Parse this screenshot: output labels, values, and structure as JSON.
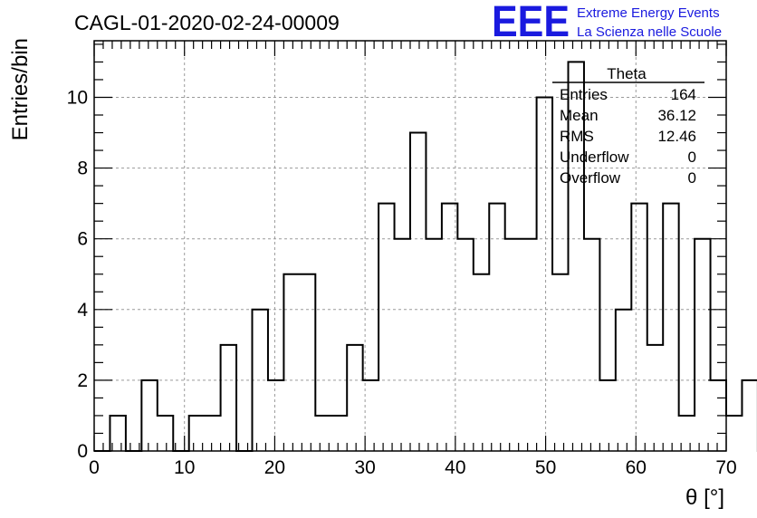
{
  "header": {
    "title": "CAGL-01-2020-02-24-00009",
    "logo_mark": "EEE",
    "logo_line1": "Extreme Energy Events",
    "logo_line2": "La Scienza nelle Scuole",
    "logo_color": "#1a1adf"
  },
  "stats_box": {
    "name": "Theta",
    "rows": [
      {
        "label": "Entries",
        "value": "164"
      },
      {
        "label": "Mean",
        "value": "36.12"
      },
      {
        "label": "RMS",
        "value": "12.46"
      },
      {
        "label": "Underflow",
        "value": "0"
      },
      {
        "label": "Overflow",
        "value": "0"
      }
    ]
  },
  "chart_data": {
    "type": "histogram",
    "xlabel": "θ [°]",
    "ylabel": "Entries/bin",
    "xlim": [
      0,
      70
    ],
    "ylim": [
      0,
      11.6
    ],
    "grid": true,
    "bin_width": 1.75,
    "x_ticks": [
      0,
      10,
      20,
      30,
      40,
      50,
      60,
      70
    ],
    "y_ticks": [
      0,
      2,
      4,
      6,
      8,
      10
    ],
    "bin_edges_start": 0,
    "values": [
      0,
      1,
      0,
      2,
      1,
      0,
      1,
      1,
      3,
      0,
      4,
      2,
      5,
      5,
      1,
      1,
      3,
      2,
      7,
      6,
      9,
      6,
      7,
      6,
      5,
      7,
      6,
      6,
      10,
      5,
      11,
      6,
      2,
      4,
      7,
      3,
      7,
      1,
      6,
      2,
      1,
      2,
      0,
      0,
      0,
      0,
      0,
      0,
      0,
      0
    ],
    "line_color": "#000000"
  }
}
